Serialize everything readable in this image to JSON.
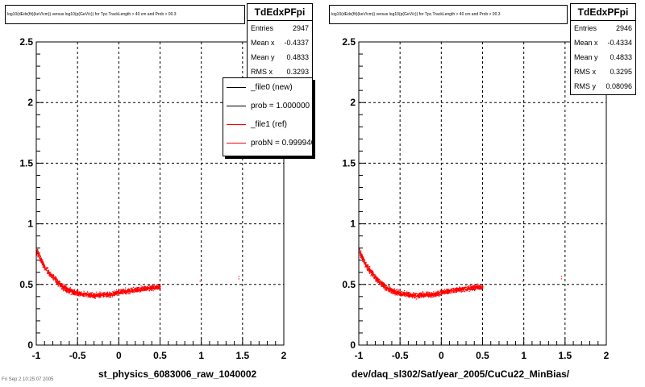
{
  "chart_data": [
    {
      "type": "scatter",
      "title": "log10(dEdx(fit)(keV/cm)) versus log10(p(GeV/c)) for Tpc.TrackLength > 40 cm and Prob > 00.3",
      "xlabel": "st_physics_6083006_raw_1040002",
      "ylabel": "",
      "xlim": [
        -1,
        2
      ],
      "ylim": [
        0,
        2.5
      ],
      "x_ticks": [
        "-1",
        "-0.5",
        "0",
        "0.5",
        "1",
        "1.5",
        "2"
      ],
      "y_ticks": [
        "0",
        "0.5",
        "1",
        "1.5",
        "2",
        "2.5"
      ],
      "grid": true,
      "color": "#ff0000",
      "band": [
        [
          -1.0,
          0.78
        ],
        [
          -0.9,
          0.64
        ],
        [
          -0.8,
          0.56
        ],
        [
          -0.7,
          0.49
        ],
        [
          -0.6,
          0.45
        ],
        [
          -0.5,
          0.43
        ],
        [
          -0.4,
          0.42
        ],
        [
          -0.3,
          0.41
        ],
        [
          -0.2,
          0.42
        ],
        [
          -0.1,
          0.42
        ],
        [
          0.0,
          0.44
        ],
        [
          0.1,
          0.45
        ],
        [
          0.2,
          0.46
        ],
        [
          0.3,
          0.47
        ],
        [
          0.45,
          0.48
        ]
      ],
      "outliers": [
        [
          1.45,
          0.57
        ],
        [
          1.45,
          0.55
        ],
        [
          0.98,
          0.53
        ]
      ],
      "stats": {
        "name": "TdEdxPFpi",
        "rows": [
          {
            "label": "Entries",
            "value": "2947"
          },
          {
            "label": "Mean x",
            "value": "-0.4337"
          },
          {
            "label": "Mean y",
            "value": "0.4833"
          },
          {
            "label": "RMS x",
            "value": "0.3293"
          }
        ]
      },
      "legend": [
        {
          "label": "_file0 (new)",
          "color": "#000000"
        },
        {
          "label": "prob = 1.000000",
          "color": "#000000"
        },
        {
          "label": "_file1 (ref)",
          "color": "#ff0000"
        },
        {
          "label": "probN = 0.999940",
          "color": "#ff0000"
        }
      ]
    },
    {
      "type": "scatter",
      "title": "log10(dEdx(fit)(keV/cm)) versus log10(p(GeV/c)) for Tpc.TrackLength > 40 cm and Prob > 00.3",
      "xlabel": "dev/daq_sl302/Sat/year_2005/CuCu22_MinBias/",
      "ylabel": "",
      "xlim": [
        -1,
        2
      ],
      "ylim": [
        0,
        2.5
      ],
      "x_ticks": [
        "-1",
        "-0.5",
        "0",
        "0.5",
        "1",
        "1.5",
        "2"
      ],
      "y_ticks": [
        "0",
        "0.5",
        "1",
        "1.5",
        "2",
        "2.5"
      ],
      "grid": true,
      "color": "#ff0000",
      "band": [
        [
          -1.0,
          0.78
        ],
        [
          -0.9,
          0.64
        ],
        [
          -0.8,
          0.56
        ],
        [
          -0.7,
          0.49
        ],
        [
          -0.6,
          0.45
        ],
        [
          -0.5,
          0.43
        ],
        [
          -0.4,
          0.42
        ],
        [
          -0.3,
          0.41
        ],
        [
          -0.2,
          0.42
        ],
        [
          -0.1,
          0.42
        ],
        [
          0.0,
          0.44
        ],
        [
          0.1,
          0.45
        ],
        [
          0.2,
          0.46
        ],
        [
          0.3,
          0.47
        ],
        [
          0.45,
          0.48
        ]
      ],
      "outliers": [
        [
          1.45,
          0.57
        ],
        [
          1.45,
          0.55
        ],
        [
          0.98,
          0.53
        ]
      ],
      "stats": {
        "name": "TdEdxPFpi",
        "rows": [
          {
            "label": "Entries",
            "value": "2946"
          },
          {
            "label": "Mean x",
            "value": "-0.4334"
          },
          {
            "label": "Mean y",
            "value": "0.4833"
          },
          {
            "label": "RMS x",
            "value": "0.3295"
          },
          {
            "label": "RMS y",
            "value": "0.08096"
          }
        ]
      }
    }
  ],
  "footer": "Fri Sep 2 10:25:07 2005"
}
